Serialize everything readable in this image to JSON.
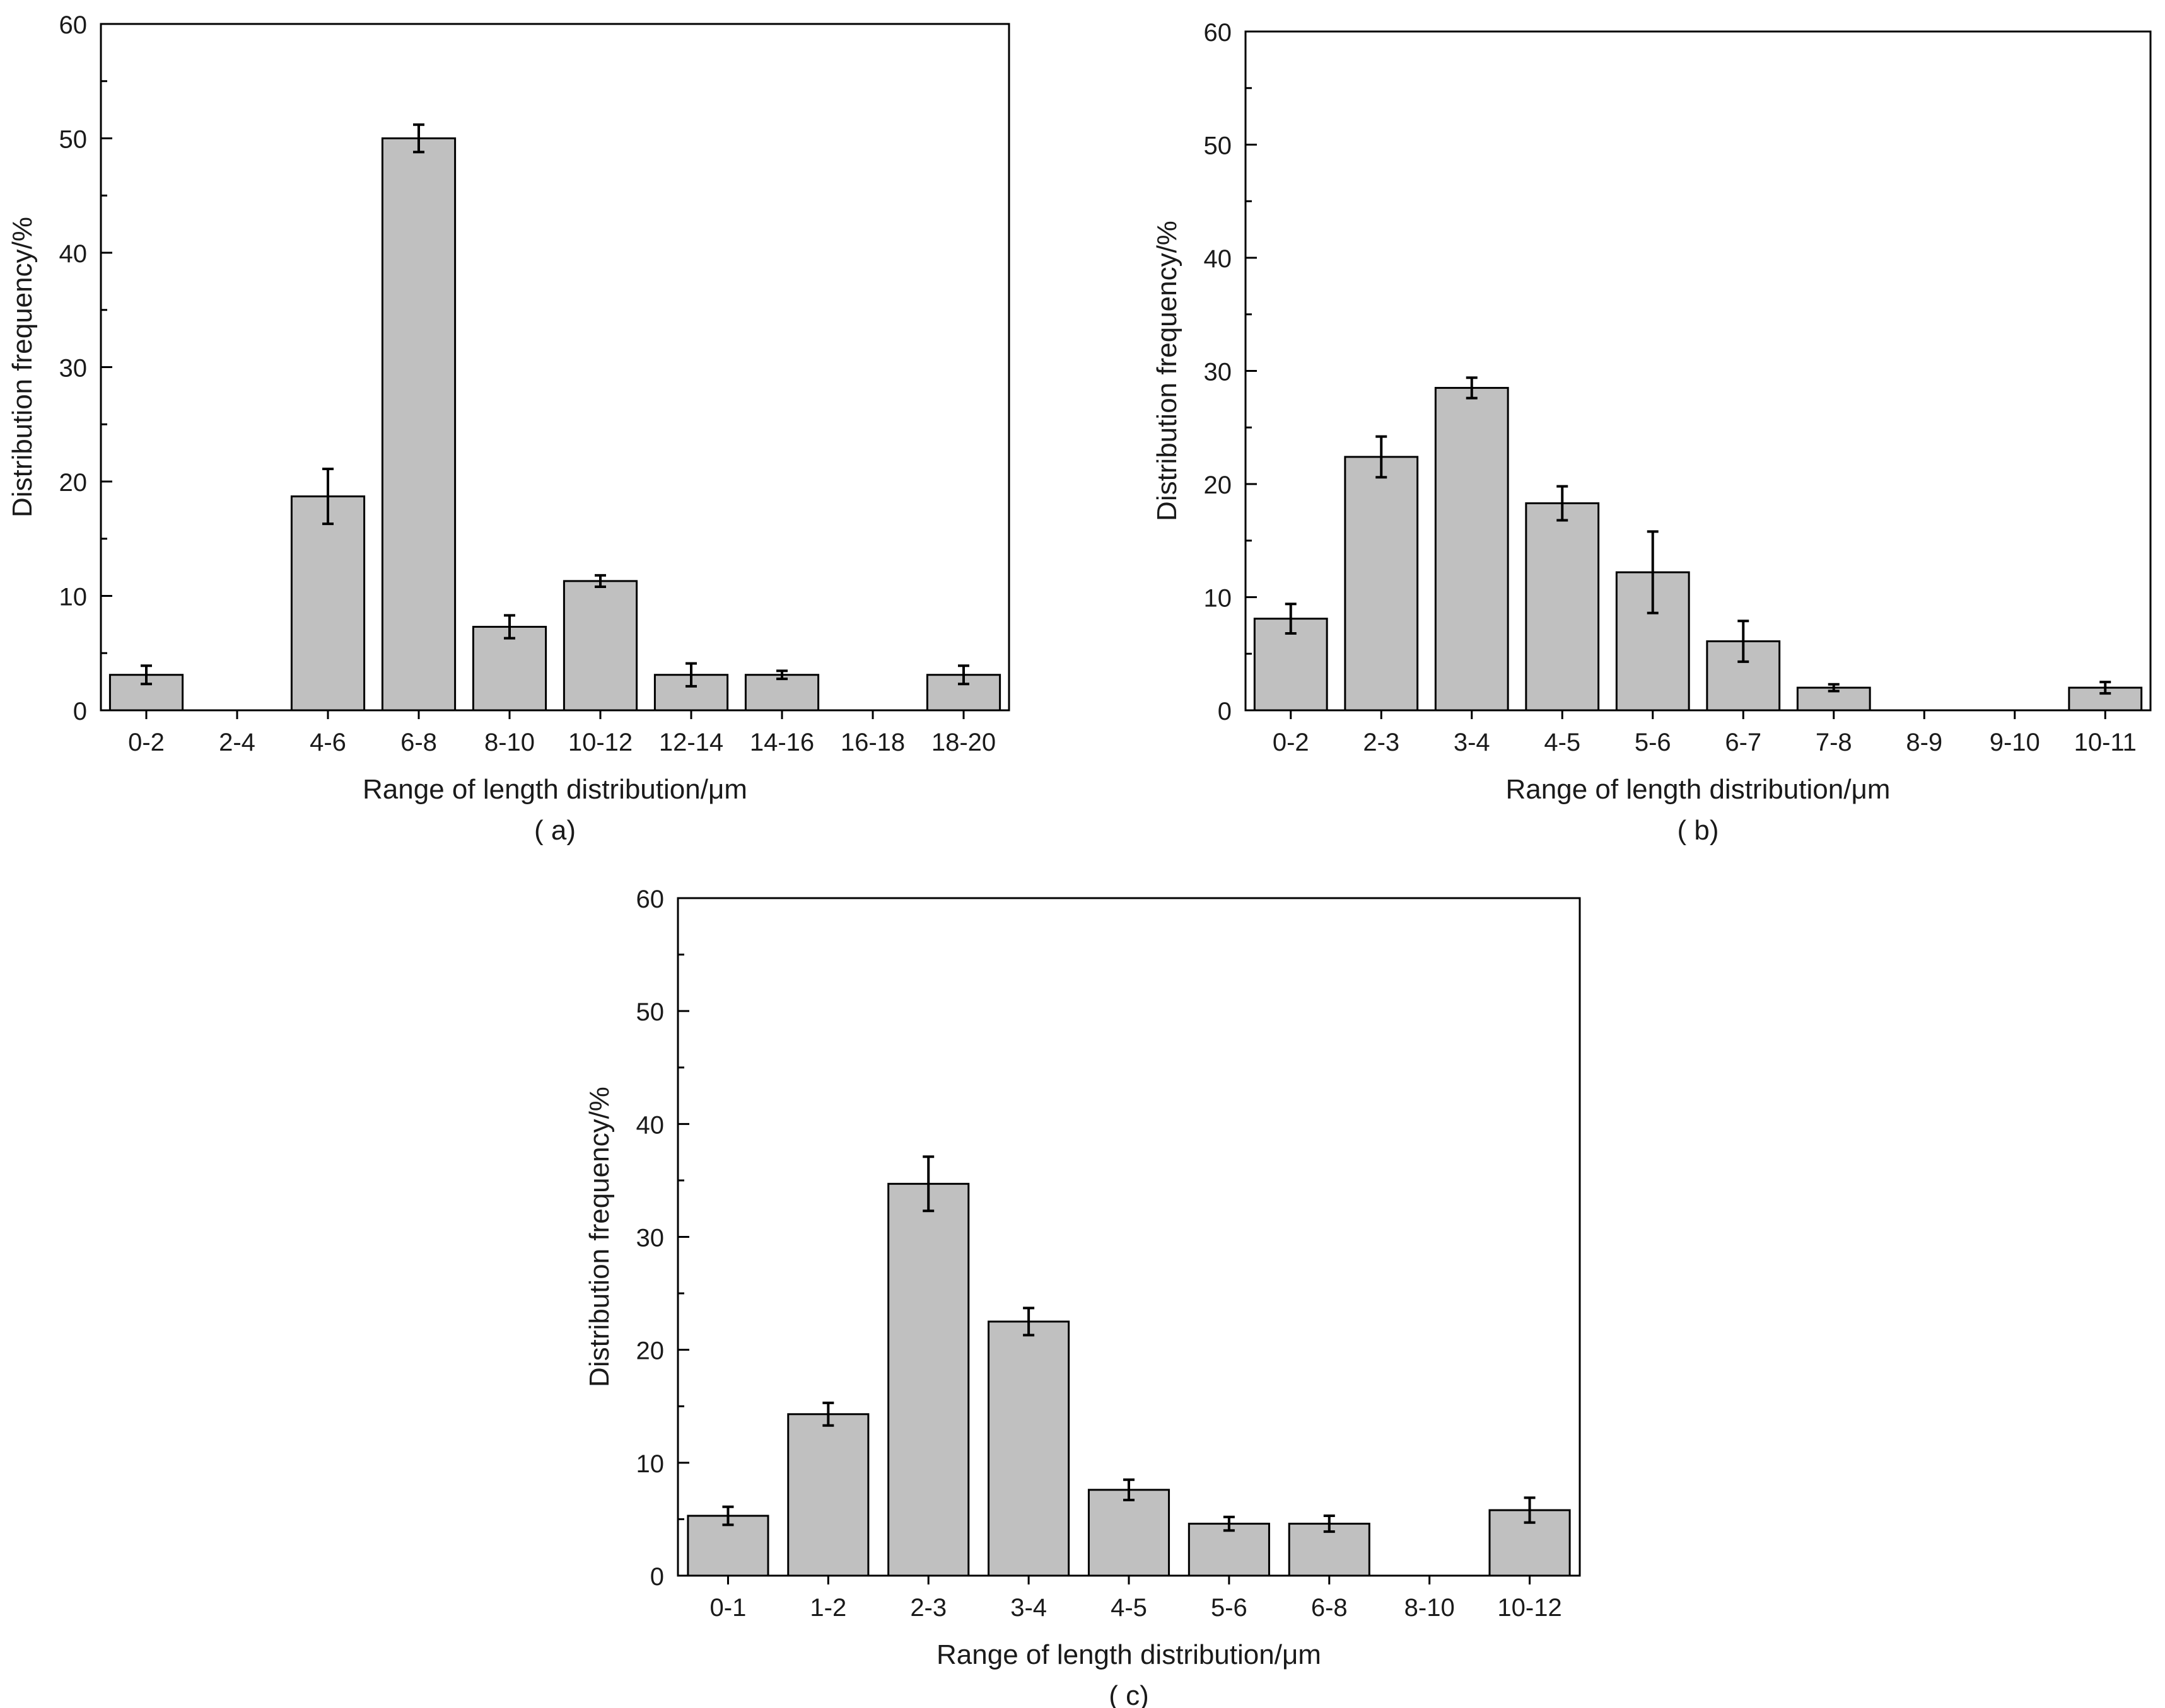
{
  "chart_data": [
    {
      "type": "bar",
      "panel_label": "( a)",
      "xlabel": "Range of length distribution/μm",
      "ylabel": "Distribution frequency/%",
      "ylim": [
        0,
        60
      ],
      "yticks": [
        "0",
        "10",
        "20",
        "30",
        "40",
        "50",
        "60"
      ],
      "categories": [
        "0-2",
        "2-4",
        "4-6",
        "6-8",
        "8-10",
        "10-12",
        "12-14",
        "14-16",
        "16-18",
        "18-20"
      ],
      "values": [
        3.1,
        0,
        18.7,
        50.0,
        7.3,
        11.3,
        3.1,
        3.1,
        0,
        3.1
      ],
      "errors": [
        0.8,
        0,
        2.4,
        1.2,
        1.0,
        0.5,
        1.0,
        0.35,
        0,
        0.8
      ],
      "bar_color": "#c0c0c0",
      "grid": false
    },
    {
      "type": "bar",
      "panel_label": "( b)",
      "xlabel": "Range of length distribution/μm",
      "ylabel": "Distribution frequency/%",
      "ylim": [
        0,
        60
      ],
      "yticks": [
        "0",
        "10",
        "20",
        "30",
        "40",
        "50",
        "60"
      ],
      "categories": [
        "0-2",
        "2-3",
        "3-4",
        "4-5",
        "5-6",
        "6-7",
        "7-8",
        "8-9",
        "9-10",
        "10-11"
      ],
      "values": [
        8.1,
        22.4,
        28.5,
        18.3,
        12.2,
        6.1,
        2.0,
        0,
        0,
        2.0
      ],
      "errors": [
        1.3,
        1.8,
        0.9,
        1.5,
        3.6,
        1.8,
        0.3,
        0,
        0,
        0.5
      ],
      "bar_color": "#c0c0c0",
      "grid": false
    },
    {
      "type": "bar",
      "panel_label": "( c)",
      "xlabel": "Range of length distribution/μm",
      "ylabel": "Distribution frequency/%",
      "ylim": [
        0,
        60
      ],
      "yticks": [
        "0",
        "10",
        "20",
        "30",
        "40",
        "50",
        "60"
      ],
      "categories": [
        "0-1",
        "1-2",
        "2-3",
        "3-4",
        "4-5",
        "5-6",
        "6-8",
        "8-10",
        "10-12"
      ],
      "values": [
        5.3,
        14.3,
        34.7,
        22.5,
        7.6,
        4.6,
        4.6,
        0,
        5.8
      ],
      "errors": [
        0.8,
        1.0,
        2.4,
        1.2,
        0.9,
        0.6,
        0.7,
        0,
        1.1
      ],
      "bar_color": "#c0c0c0",
      "grid": false
    }
  ]
}
